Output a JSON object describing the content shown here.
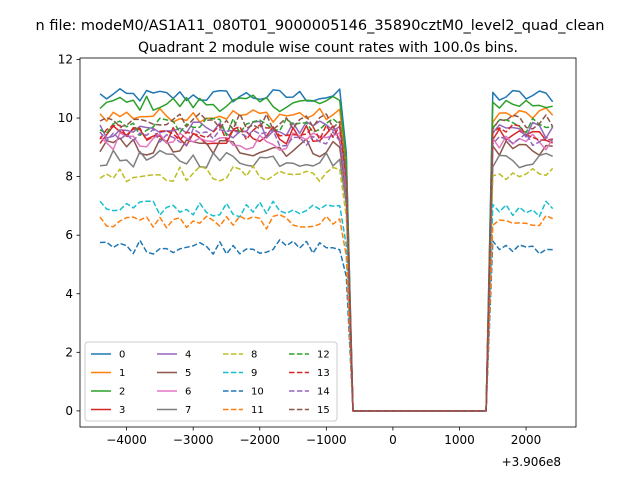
{
  "suptitle": "n file: modeM0/AS1A11_080T01_9000005146_35890cztM0_level2_quad_clean",
  "chart_data": {
    "type": "line",
    "title": "Quadrant 2 module wise count rates with 100.0s bins.",
    "xlabel": "",
    "ylabel": "",
    "offset_label": "+3.906e8",
    "xlim": [
      -4700,
      2750
    ],
    "ylim": [
      -0.55,
      12.05
    ],
    "x_ticks": [
      -4000,
      -3000,
      -2000,
      -1000,
      0,
      1000,
      2000
    ],
    "x_tick_labels": [
      "−4000",
      "−3000",
      "−2000",
      "−1000",
      "0",
      "1000",
      "2000"
    ],
    "y_ticks": [
      0,
      2,
      4,
      6,
      8,
      10,
      12
    ],
    "y_tick_labels": [
      "0",
      "2",
      "4",
      "6",
      "8",
      "10",
      "12"
    ],
    "grid": false,
    "legend": {
      "placement": "lower-left",
      "columns": 4
    },
    "time_axis": {
      "seg1_start": -4400,
      "seg1_end": -700,
      "gap_start": -600,
      "gap_end": 1400,
      "seg2_start": 1500,
      "seg2_end": 2450,
      "step": 100
    },
    "series": [
      {
        "name": "0",
        "color": "#1f77b4",
        "dash": "solid",
        "level": 10.75,
        "noise": 0.25
      },
      {
        "name": "1",
        "color": "#ff7f0e",
        "dash": "solid",
        "level": 10.1,
        "noise": 0.25
      },
      {
        "name": "2",
        "color": "#2ca02c",
        "dash": "solid",
        "level": 10.5,
        "noise": 0.28
      },
      {
        "name": "3",
        "color": "#d62728",
        "dash": "solid",
        "level": 9.4,
        "noise": 0.35
      },
      {
        "name": "4",
        "color": "#9467bd",
        "dash": "solid",
        "level": 9.6,
        "noise": 0.3
      },
      {
        "name": "5",
        "color": "#8c564b",
        "dash": "solid",
        "level": 9.0,
        "noise": 0.35
      },
      {
        "name": "6",
        "color": "#e377c2",
        "dash": "solid",
        "level": 9.2,
        "noise": 0.3
      },
      {
        "name": "7",
        "color": "#7f7f7f",
        "dash": "solid",
        "level": 8.6,
        "noise": 0.3
      },
      {
        "name": "8",
        "color": "#bcbd22",
        "dash": "dashed",
        "level": 8.1,
        "noise": 0.28
      },
      {
        "name": "9",
        "color": "#17becf",
        "dash": "dashed",
        "level": 6.9,
        "noise": 0.28
      },
      {
        "name": "10",
        "color": "#1f77b4",
        "dash": "dashed",
        "level": 5.6,
        "noise": 0.25
      },
      {
        "name": "11",
        "color": "#ff7f0e",
        "dash": "dashed",
        "level": 6.45,
        "noise": 0.25
      },
      {
        "name": "12",
        "color": "#2ca02c",
        "dash": "dashed",
        "level": 9.7,
        "noise": 0.3
      },
      {
        "name": "13",
        "color": "#d62728",
        "dash": "dashed",
        "level": 9.5,
        "noise": 0.3
      },
      {
        "name": "14",
        "color": "#9467bd",
        "dash": "dashed",
        "level": 9.35,
        "noise": 0.3
      },
      {
        "name": "15",
        "color": "#8c564b",
        "dash": "dashed",
        "level": 9.9,
        "noise": 0.3
      }
    ]
  }
}
